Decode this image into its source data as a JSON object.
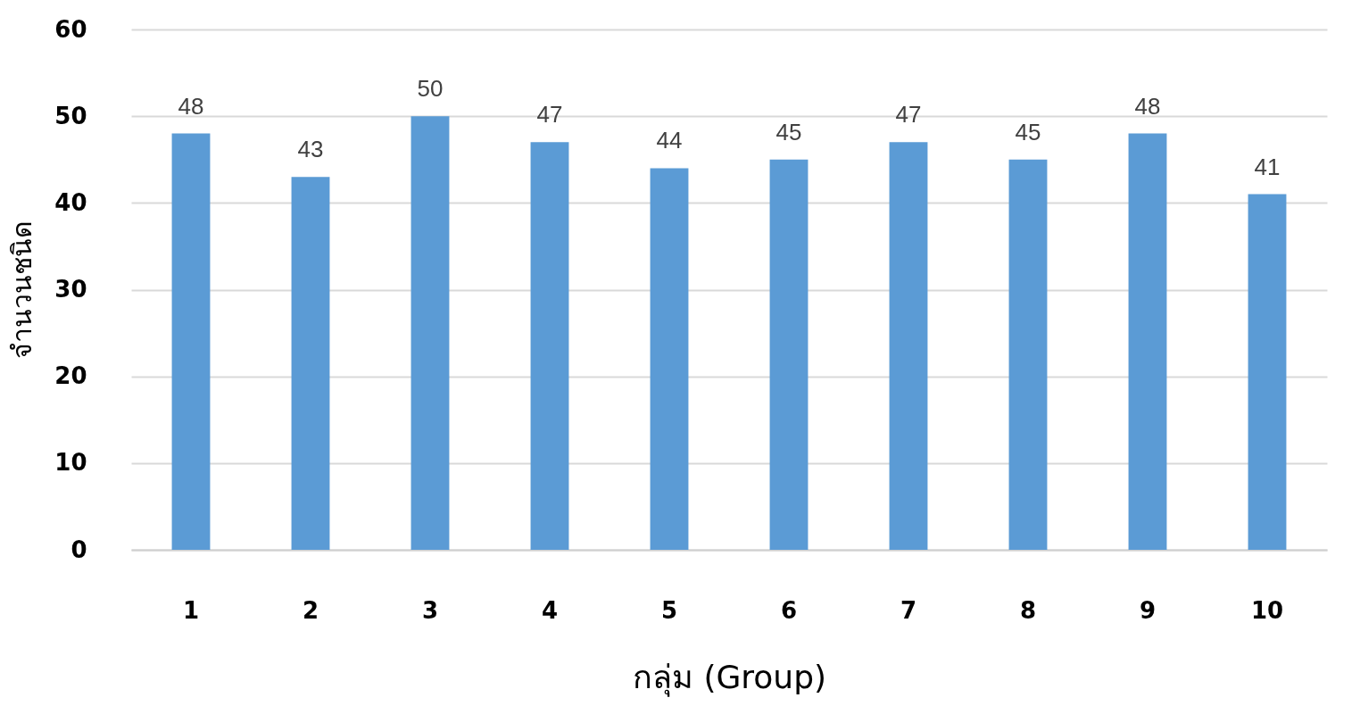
{
  "chart_data": {
    "type": "bar",
    "xlabel": "กลุ่ม  (Group)",
    "ylabel": "จำนวนชนิด",
    "categories": [
      "1",
      "2",
      "3",
      "4",
      "5",
      "6",
      "7",
      "8",
      "9",
      "10"
    ],
    "values": [
      48,
      43,
      50,
      47,
      44,
      45,
      47,
      45,
      48,
      41
    ],
    "color": "#5b9bd5",
    "ylim": [
      0,
      60
    ],
    "yticks": [
      0,
      10,
      20,
      30,
      40,
      50,
      60
    ],
    "grid": "y",
    "data_labels": true
  }
}
